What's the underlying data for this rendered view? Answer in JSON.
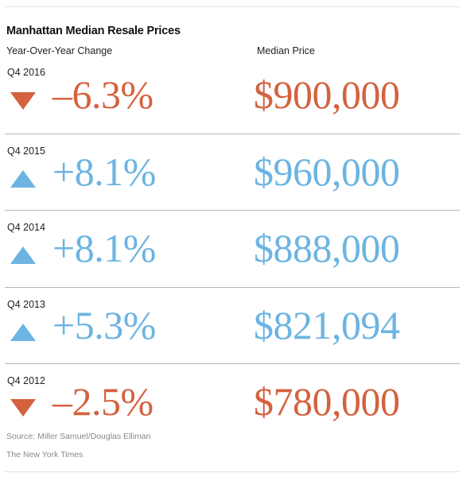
{
  "chart_data": {
    "type": "table",
    "title": "Manhattan Median Resale Prices",
    "column_headers": [
      "Year-Over-Year Change",
      "Median Price"
    ],
    "rows": [
      {
        "period": "Q4 2016",
        "change_label": "–6.3%",
        "change": -6.3,
        "direction": "down",
        "price_label": "$900,000",
        "price": 900000
      },
      {
        "period": "Q4 2015",
        "change_label": "+8.1%",
        "change": 8.1,
        "direction": "up",
        "price_label": "$960,000",
        "price": 960000
      },
      {
        "period": "Q4 2014",
        "change_label": "+8.1%",
        "change": 8.1,
        "direction": "up",
        "price_label": "$888,000",
        "price": 888000
      },
      {
        "period": "Q4 2013",
        "change_label": "+5.3%",
        "change": 5.3,
        "direction": "up",
        "price_label": "$821,094",
        "price": 821094
      },
      {
        "period": "Q4 2012",
        "change_label": "–2.5%",
        "change": -2.5,
        "direction": "down",
        "price_label": "$780,000",
        "price": 780000
      }
    ],
    "colors": {
      "up": "#6cb4e2",
      "down": "#d4623f"
    }
  },
  "footer": {
    "source": "Source: Miller Samuel/Douglas Elliman",
    "credit": "The New York Times"
  }
}
